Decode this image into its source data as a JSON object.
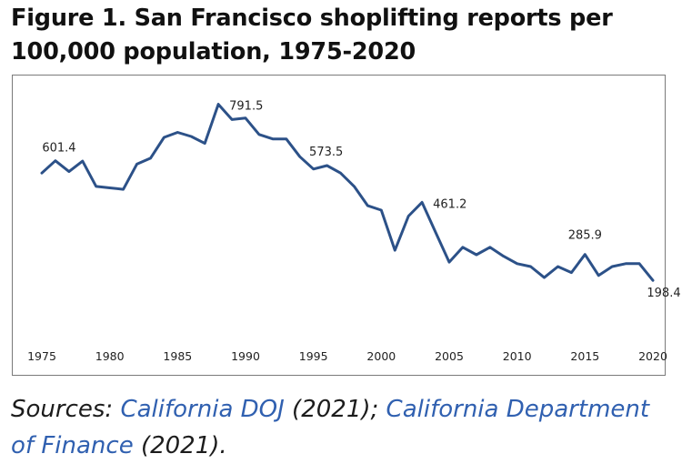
{
  "title": "Figure 1. San Francisco shoplifting reports per 100,000 population, 1975-2020",
  "sources": {
    "prefix": "Sources: ",
    "link1": "California DOJ",
    "mid": " (2021); ",
    "link2": "California Department of Finance",
    "suffix": " (2021).",
    "link_color": "#3060b0"
  },
  "chart_data": {
    "type": "line",
    "title": "San Francisco shoplifting reports per 100,000 population, 1975-2020",
    "xlabel": "",
    "ylabel": "",
    "xlim": [
      1974.3,
      2020.6
    ],
    "ylim": [
      0,
      870
    ],
    "grid": false,
    "line_color": "#2c5188",
    "x_ticks": [
      1975,
      1980,
      1985,
      1990,
      1995,
      2000,
      2005,
      2010,
      2015,
      2020
    ],
    "series": [
      {
        "name": "Shoplifting reports per 100,000",
        "x": [
          1975,
          1976,
          1977,
          1978,
          1979,
          1980,
          1981,
          1982,
          1983,
          1984,
          1985,
          1986,
          1987,
          1988,
          1989,
          1990,
          1991,
          1992,
          1993,
          1994,
          1995,
          1996,
          1997,
          1998,
          1999,
          2000,
          2001,
          2002,
          2003,
          2004,
          2005,
          2006,
          2007,
          2008,
          2009,
          2010,
          2011,
          2012,
          2013,
          2014,
          2015,
          2016,
          2017,
          2018,
          2019,
          2020
        ],
        "values": [
          560,
          601.4,
          565,
          600,
          515,
          510,
          505,
          590,
          610,
          680,
          697,
          683,
          660,
          791.5,
          740,
          745,
          690,
          675,
          675,
          615,
          573.5,
          585,
          560,
          515,
          450,
          435,
          300,
          415,
          461.2,
          360,
          260,
          310,
          285,
          310,
          280,
          255,
          245,
          208,
          245,
          225,
          285.9,
          215,
          245,
          255,
          255,
          198.4
        ]
      }
    ],
    "annotations": [
      {
        "x": 1976,
        "value": 601.4,
        "label": "601.4"
      },
      {
        "x": 1988,
        "value": 791.5,
        "label": "791.5"
      },
      {
        "x": 1995,
        "value": 573.5,
        "label": "573.5"
      },
      {
        "x": 2003,
        "value": 461.2,
        "label": "461.2"
      },
      {
        "x": 2015,
        "value": 285.9,
        "label": "285.9"
      },
      {
        "x": 2020,
        "value": 198.4,
        "label": "198.4"
      }
    ]
  }
}
